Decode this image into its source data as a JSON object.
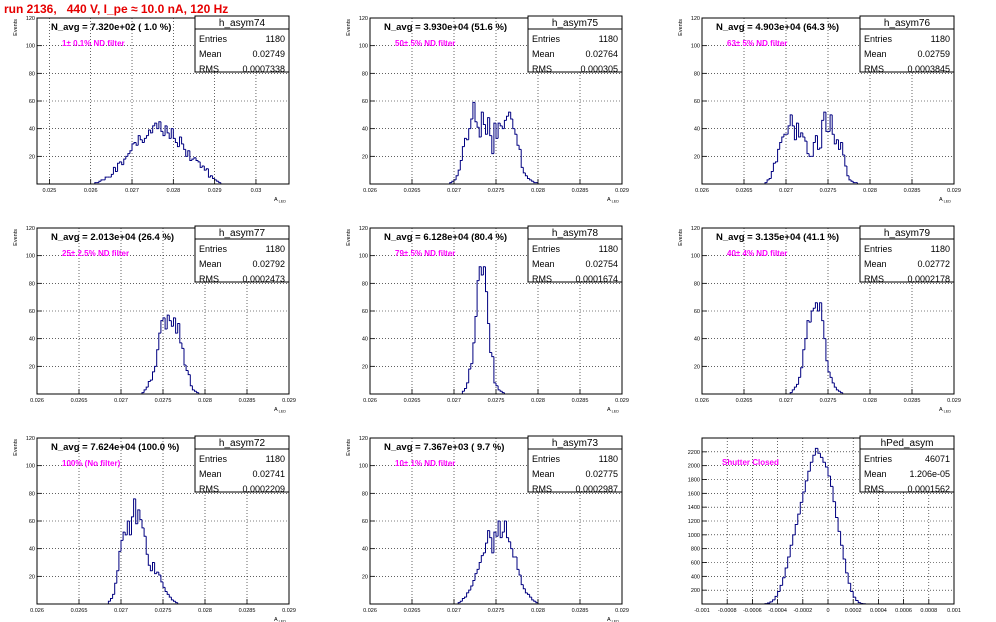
{
  "page_title": "run 2136,   440 V, I_pe ≈ 10.0 nA, 120 Hz",
  "colors": {
    "title": "#e60000",
    "histogram": "#000080",
    "annotation": "#ff00ff",
    "frame": "#000000",
    "grid": "#000000"
  },
  "chart_data": [
    {
      "type": "bar",
      "name": "h_asym74",
      "title": "N_avg = 7.320e+02 ( 1.0 %)",
      "annotation": "1± 0.1% ND filter",
      "ylabel": "Events",
      "xlabel": "A_{LED}",
      "grid": true,
      "stats": {
        "entries": "1180",
        "mean": "0.02749",
        "rms": "0.0007338"
      },
      "stats_labels": [
        "Entries",
        "Mean",
        "RMS"
      ],
      "xlim": [
        0.0247,
        0.0308
      ],
      "ylim": [
        0,
        120
      ],
      "xticks": [
        0.025,
        0.026,
        0.027,
        0.028,
        0.029,
        0.03
      ],
      "xtick_labels": [
        "0.025",
        "0.026",
        "0.027",
        "0.028",
        "0.029",
        "0.03"
      ],
      "yticks": [
        0,
        20,
        40,
        60,
        80,
        100,
        120
      ],
      "ytick_labels": [
        "",
        "20",
        "40",
        "60",
        "80",
        "100",
        "120"
      ],
      "bins": {
        "start": 0.0261,
        "width": 5e-05,
        "counts": [
          1,
          1,
          2,
          3,
          3,
          5,
          5,
          5,
          7,
          12,
          9,
          15,
          16,
          14,
          18,
          20,
          22,
          24,
          29,
          30,
          28,
          35,
          32,
          30,
          33,
          35,
          39,
          37,
          42,
          44,
          40,
          45,
          38,
          35,
          42,
          37,
          33,
          40,
          33,
          30,
          27,
          34,
          29,
          25,
          20,
          24,
          17,
          18,
          19,
          17,
          16,
          12,
          13,
          10,
          11,
          5,
          6,
          4,
          3,
          2,
          1
        ]
      }
    },
    {
      "type": "bar",
      "name": "h_asym75",
      "title": "N_avg = 3.930e+04 (51.6 %)",
      "annotation": "50± 5% ND filter",
      "ylabel": "Events",
      "xlabel": "A_{LED}",
      "grid": true,
      "stats": {
        "entries": "1180",
        "mean": "0.02764",
        "rms": "0.000305"
      },
      "stats_labels": [
        "Entries",
        "Mean",
        "RMS"
      ],
      "xlim": [
        0.026,
        0.029
      ],
      "ylim": [
        0,
        120
      ],
      "xticks": [
        0.026,
        0.0265,
        0.027,
        0.0275,
        0.028,
        0.0285,
        0.029
      ],
      "xtick_labels": [
        "0.026",
        "0.0265",
        "0.027",
        "0.0275",
        "0.028",
        "0.0285",
        "0.029"
      ],
      "yticks": [
        0,
        20,
        40,
        60,
        80,
        100,
        120
      ],
      "ytick_labels": [
        "",
        "20",
        "40",
        "60",
        "80",
        "100",
        "120"
      ],
      "bins": {
        "start": 0.02695,
        "width": 2.5e-05,
        "counts": [
          1,
          2,
          3,
          6,
          10,
          17,
          27,
          33,
          32,
          40,
          47,
          59,
          45,
          41,
          34,
          52,
          43,
          36,
          48,
          35,
          22,
          44,
          33,
          44,
          42,
          40,
          46,
          49,
          52,
          47,
          40,
          36,
          28,
          25,
          12,
          8,
          6,
          4,
          3,
          2,
          1,
          1
        ]
      }
    },
    {
      "type": "bar",
      "name": "h_asym76",
      "title": "N_avg = 4.903e+04 (64.3 %)",
      "annotation": "63± 5% ND filter",
      "ylabel": "Events",
      "xlabel": "A_{LED}",
      "grid": true,
      "stats": {
        "entries": "1180",
        "mean": "0.02759",
        "rms": "0.0003845"
      },
      "stats_labels": [
        "Entries",
        "Mean",
        "RMS"
      ],
      "xlim": [
        0.026,
        0.029
      ],
      "ylim": [
        0,
        120
      ],
      "xticks": [
        0.026,
        0.0265,
        0.027,
        0.0275,
        0.028,
        0.0285,
        0.029
      ],
      "xtick_labels": [
        "0.026",
        "0.0265",
        "0.027",
        "0.0275",
        "0.028",
        "0.0285",
        "0.029"
      ],
      "yticks": [
        0,
        20,
        40,
        60,
        80,
        100,
        120
      ],
      "ytick_labels": [
        "",
        "20",
        "40",
        "60",
        "80",
        "100",
        "120"
      ],
      "bins": {
        "start": 0.02675,
        "width": 2.5e-05,
        "counts": [
          1,
          3,
          4,
          9,
          15,
          16,
          25,
          30,
          34,
          36,
          36,
          42,
          50,
          42,
          32,
          44,
          34,
          37,
          34,
          31,
          22,
          20,
          20,
          30,
          35,
          25,
          26,
          46,
          52,
          38,
          38,
          50,
          36,
          29,
          32,
          25,
          30,
          21,
          13,
          6,
          3,
          2,
          1,
          1
        ]
      }
    },
    {
      "type": "bar",
      "name": "h_asym77",
      "title": "N_avg = 2.013e+04 (26.4 %)",
      "annotation": "25± 2.5% ND filter",
      "ylabel": "Events",
      "xlabel": "A_{LED}",
      "grid": true,
      "stats": {
        "entries": "1180",
        "mean": "0.02792",
        "rms": "0.0002473"
      },
      "stats_labels": [
        "Entries",
        "Mean",
        "RMS"
      ],
      "xlim": [
        0.026,
        0.029
      ],
      "ylim": [
        0,
        120
      ],
      "xticks": [
        0.026,
        0.0265,
        0.027,
        0.0275,
        0.028,
        0.0285,
        0.029
      ],
      "xtick_labels": [
        "0.026",
        "0.0265",
        "0.027",
        "0.0275",
        "0.028",
        "0.0285",
        "0.029"
      ],
      "yticks": [
        0,
        20,
        40,
        60,
        80,
        100,
        120
      ],
      "ytick_labels": [
        "",
        "20",
        "40",
        "60",
        "80",
        "100",
        "120"
      ],
      "bins": {
        "start": 0.02725,
        "width": 2.5e-05,
        "counts": [
          1,
          3,
          5,
          9,
          10,
          16,
          20,
          32,
          44,
          53,
          55,
          47,
          57,
          53,
          49,
          55,
          44,
          51,
          37,
          33,
          21,
          17,
          14,
          6,
          3,
          2,
          1
        ]
      }
    },
    {
      "type": "bar",
      "name": "h_asym78",
      "title": "N_avg = 6.128e+04 (80.4 %)",
      "annotation": "79± 5% ND filter",
      "ylabel": "Events",
      "xlabel": "A_{LED}",
      "grid": true,
      "stats": {
        "entries": "1180",
        "mean": "0.02754",
        "rms": "0.0001674"
      },
      "stats_labels": [
        "Entries",
        "Mean",
        "RMS"
      ],
      "xlim": [
        0.026,
        0.029
      ],
      "ylim": [
        0,
        120
      ],
      "xticks": [
        0.026,
        0.0265,
        0.027,
        0.0275,
        0.028,
        0.0285,
        0.029
      ],
      "xtick_labels": [
        "0.026",
        "0.0265",
        "0.027",
        "0.0275",
        "0.028",
        "0.0285",
        "0.029"
      ],
      "yticks": [
        0,
        20,
        40,
        60,
        80,
        100,
        120
      ],
      "ytick_labels": [
        "",
        "20",
        "40",
        "60",
        "80",
        "100",
        "120"
      ],
      "bins": {
        "start": 0.0271,
        "width": 2.5e-05,
        "counts": [
          2,
          4,
          8,
          18,
          22,
          37,
          56,
          82,
          92,
          86,
          92,
          74,
          51,
          30,
          27,
          8,
          6,
          3,
          2,
          1
        ]
      }
    },
    {
      "type": "bar",
      "name": "h_asym79",
      "title": "N_avg = 3.135e+04 (41.1 %)",
      "annotation": "40± 4% ND filter",
      "ylabel": "Events",
      "xlabel": "A_{LED}",
      "grid": true,
      "stats": {
        "entries": "1180",
        "mean": "0.02772",
        "rms": "0.0002178"
      },
      "stats_labels": [
        "Entries",
        "Mean",
        "RMS"
      ],
      "xlim": [
        0.026,
        0.029
      ],
      "ylim": [
        0,
        120
      ],
      "xticks": [
        0.026,
        0.0265,
        0.027,
        0.0275,
        0.028,
        0.0285,
        0.029
      ],
      "xtick_labels": [
        "0.026",
        "0.0265",
        "0.027",
        "0.0275",
        "0.028",
        "0.0285",
        "0.029"
      ],
      "yticks": [
        0,
        20,
        40,
        60,
        80,
        100,
        120
      ],
      "ytick_labels": [
        "",
        "20",
        "40",
        "60",
        "80",
        "100",
        "120"
      ],
      "bins": {
        "start": 0.02705,
        "width": 2.5e-05,
        "counts": [
          1,
          3,
          5,
          7,
          12,
          19,
          32,
          40,
          53,
          52,
          60,
          62,
          66,
          60,
          66,
          53,
          40,
          24,
          16,
          12,
          8,
          5,
          3,
          2,
          1
        ]
      }
    },
    {
      "type": "bar",
      "name": "h_asym72",
      "title": "N_avg = 7.624e+04 (100.0 %)",
      "annotation": "100% (No filter)",
      "ylabel": "Events",
      "xlabel": "A_{LED}",
      "grid": true,
      "stats": {
        "entries": "1180",
        "mean": "0.02741",
        "rms": "0.0002209"
      },
      "stats_labels": [
        "Entries",
        "Mean",
        "RMS"
      ],
      "xlim": [
        0.026,
        0.029
      ],
      "ylim": [
        0,
        120
      ],
      "xticks": [
        0.026,
        0.0265,
        0.027,
        0.0275,
        0.028,
        0.0285,
        0.029
      ],
      "xtick_labels": [
        "0.026",
        "0.0265",
        "0.027",
        "0.0275",
        "0.028",
        "0.0285",
        "0.029"
      ],
      "yticks": [
        0,
        20,
        40,
        60,
        80,
        100,
        120
      ],
      "ytick_labels": [
        "",
        "20",
        "40",
        "60",
        "80",
        "100",
        "120"
      ],
      "bins": {
        "start": 0.02685,
        "width": 2.5e-05,
        "counts": [
          2,
          4,
          7,
          15,
          24,
          38,
          46,
          52,
          50,
          60,
          50,
          63,
          76,
          58,
          68,
          61,
          55,
          49,
          36,
          28,
          24,
          30,
          22,
          23,
          21,
          16,
          12,
          9,
          7,
          5,
          3,
          2,
          1
        ]
      }
    },
    {
      "type": "bar",
      "name": "h_asym73",
      "title": "N_avg = 7.367e+03 ( 9.7 %)",
      "annotation": "10± 1% ND filter",
      "ylabel": "Events",
      "xlabel": "A_{LED}",
      "grid": true,
      "stats": {
        "entries": "1180",
        "mean": "0.02775",
        "rms": "0.0002987"
      },
      "stats_labels": [
        "Entries",
        "Mean",
        "RMS"
      ],
      "xlim": [
        0.026,
        0.029
      ],
      "ylim": [
        0,
        120
      ],
      "xticks": [
        0.026,
        0.0265,
        0.027,
        0.0275,
        0.028,
        0.0285,
        0.029
      ],
      "xtick_labels": [
        "0.026",
        "0.0265",
        "0.027",
        "0.0275",
        "0.028",
        "0.0285",
        "0.029"
      ],
      "yticks": [
        0,
        20,
        40,
        60,
        80,
        100,
        120
      ],
      "ytick_labels": [
        "",
        "20",
        "40",
        "60",
        "80",
        "100",
        "120"
      ],
      "bins": {
        "start": 0.02705,
        "width": 2.5e-05,
        "counts": [
          1,
          2,
          4,
          5,
          8,
          10,
          13,
          17,
          22,
          25,
          30,
          35,
          37,
          44,
          53,
          48,
          37,
          52,
          49,
          60,
          48,
          52,
          60,
          48,
          45,
          40,
          34,
          34,
          25,
          21,
          14,
          11,
          8,
          7,
          5,
          3,
          2,
          1
        ]
      }
    },
    {
      "type": "bar",
      "name": "hPed_asym",
      "title": "",
      "annotation": "Shutter Closed",
      "ylabel": "",
      "xlabel": "",
      "grid": true,
      "stats": {
        "entries": "46071",
        "mean": "1.206e-05",
        "rms": "0.0001562"
      },
      "stats_labels": [
        "Entries",
        "Mean",
        "RMS"
      ],
      "xlim": [
        -0.001,
        0.001
      ],
      "ylim": [
        0,
        2400
      ],
      "xticks": [
        -0.001,
        -0.0008,
        -0.0006,
        -0.0004,
        -0.0002,
        0,
        0.0002,
        0.0004,
        0.0006,
        0.0008,
        0.001
      ],
      "xtick_labels": [
        "-0.001",
        "-0.0008",
        "-0.0006",
        "-0.0004",
        "-0.0002",
        "0",
        "0.0002",
        "0.0004",
        "0.0006",
        "0.0008",
        "0.001"
      ],
      "yticks": [
        0,
        200,
        400,
        600,
        800,
        1000,
        1200,
        1400,
        1600,
        1800,
        2000,
        2200
      ],
      "ytick_labels": [
        "",
        "200",
        "400",
        "600",
        "800",
        "1000",
        "1200",
        "1400",
        "1600",
        "1800",
        "2000",
        "2200"
      ],
      "bins": {
        "start": -0.0005,
        "width": 2e-05,
        "counts": [
          5,
          15,
          30,
          60,
          110,
          180,
          270,
          380,
          520,
          680,
          850,
          1000,
          1150,
          1300,
          1470,
          1620,
          1780,
          1920,
          2050,
          2150,
          2250,
          2180,
          2120,
          2050,
          1980,
          1850,
          1700,
          1480,
          1250,
          1050,
          850,
          650,
          450,
          300,
          180,
          100,
          50,
          20,
          8,
          3
        ]
      }
    }
  ]
}
